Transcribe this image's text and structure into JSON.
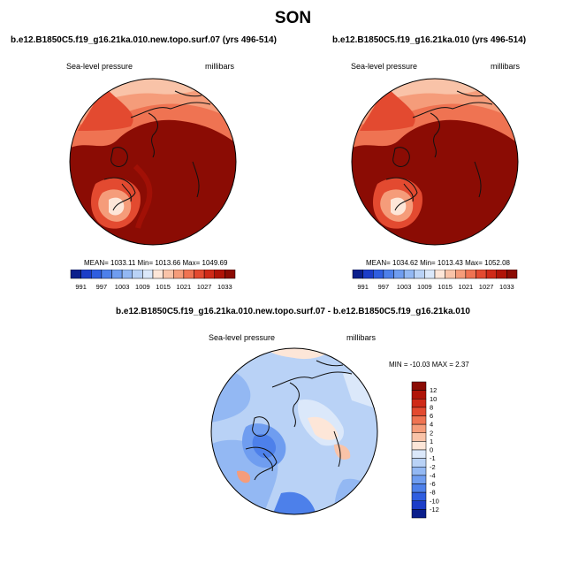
{
  "season": "SON",
  "panels": {
    "top_left": {
      "title": "b.e12.B1850C5.f19_g16.21ka.010.new.topo.surf.07 (yrs 496-514)",
      "variable": "Sea-level pressure",
      "units": "millibars",
      "stats": "MEAN= 1033.11   Min= 1013.66   Max= 1049.69"
    },
    "top_right": {
      "title": "b.e12.B1850C5.f19_g16.21ka.010 (yrs 496-514)",
      "variable": "Sea-level pressure",
      "units": "millibars",
      "stats": "MEAN= 1034.62   Min= 1013.43   Max= 1052.08"
    },
    "bottom": {
      "title": "b.e12.B1850C5.f19_g16.21ka.010.new.topo.surf.07 - b.e12.B1850C5.f19_g16.21ka.010",
      "variable": "Sea-level pressure",
      "units": "millibars",
      "stats": "MIN = -10.03 MAX =   2.37"
    }
  },
  "colorbar_top": {
    "labels": [
      "991",
      "997",
      "1003",
      "1009",
      "1015",
      "1021",
      "1027",
      "1033"
    ],
    "colors": [
      "#0b1f8c",
      "#1c3dc8",
      "#2f5ee0",
      "#4d80ea",
      "#6f9df0",
      "#93b8f3",
      "#b9d2f6",
      "#dbe8fa",
      "#fde6d8",
      "#f9c3a8",
      "#f59c7a",
      "#ef7352",
      "#e34a30",
      "#cf2a18",
      "#b01408",
      "#8b0c04"
    ]
  },
  "colorbar_diff": {
    "labels": [
      "12",
      "10",
      "8",
      "6",
      "4",
      "2",
      "1",
      "0",
      "-1",
      "-2",
      "-4",
      "-6",
      "-8",
      "-10",
      "-12"
    ],
    "colors": [
      "#8b0c04",
      "#b01408",
      "#cf2a18",
      "#e34a30",
      "#ef7352",
      "#f59c7a",
      "#f9c3a8",
      "#fde6d8",
      "#dbe8fa",
      "#b9d2f6",
      "#93b8f3",
      "#6f9df0",
      "#4d80ea",
      "#2f5ee0",
      "#1c3dc8",
      "#0b1f8c"
    ]
  }
}
